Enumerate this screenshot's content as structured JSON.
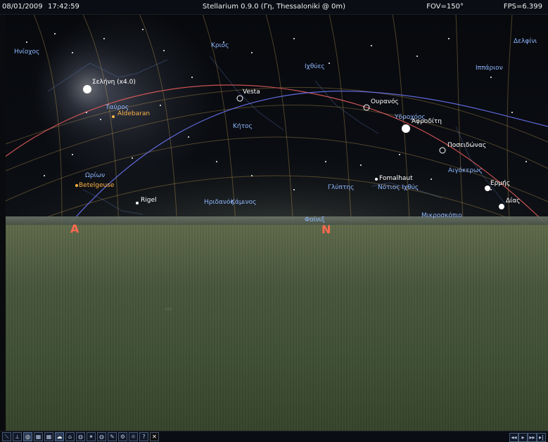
{
  "topbar": {
    "date": "08/01/2009",
    "time": "17:42:59",
    "title": "Stellarium 0.9.0 (Γη, Thessaloniki @ 0m)",
    "fov": "FOV=150°",
    "fps": "FPS=6.399"
  },
  "sky": {
    "constellations": {
      "hniochos": "Ηνίοχος",
      "krios": "Κριός",
      "delfini": "Δελφίνι",
      "ixtheis": "Ιχθύες",
      "ippario": "Ιππάριον",
      "tayros": "Ταύρος",
      "kitos": "Κήτος",
      "ydroxoos": "Υδροχόος",
      "orion": "Ωρίων",
      "aigokeros": "Αιγόκερως",
      "glyptis": "Γλύπτης",
      "notios_ixthys": "Νότιος Ιχθύς",
      "iridanos": "Ηριδανός",
      "kaminos": "Κάμινος",
      "foinix": "Φοίνιξ",
      "mikroskopio": "Μικροσκόπιο"
    },
    "planets": {
      "moon": "Σελήνη (x4.0)",
      "vesta": "Vesta",
      "uranus": "Ουρανός",
      "venus": "Αφροδίτη",
      "neptune": "Ποσειδώνας",
      "mercury": "Ερμής",
      "jupiter": "Δίας"
    },
    "stars": {
      "aldebaran": "Aldebaran",
      "betelgeuse": "Betelgeuse",
      "rigel": "Rigel",
      "fomalhaut": "Fomalhaut"
    },
    "cardinal": {
      "a": "A",
      "n": "N"
    },
    "colors": {
      "grid": "#d2a85a",
      "ecliptic": "#e05a5a",
      "equator": "#6f79ff",
      "constellation_label": "#8fb7ff",
      "star_label": "#ffb347",
      "cardinal": "#ff6a50"
    }
  },
  "toolbar": {
    "buttons": [
      "⟍",
      "⟂",
      "◎",
      "▦",
      "▦",
      "☁",
      "⌂",
      "◍",
      "✶",
      "◍",
      "✎",
      "⚙",
      "☼",
      "?",
      "✕"
    ],
    "time_controls": [
      "◂◂",
      "▸",
      "▸▸",
      "▸|"
    ]
  }
}
